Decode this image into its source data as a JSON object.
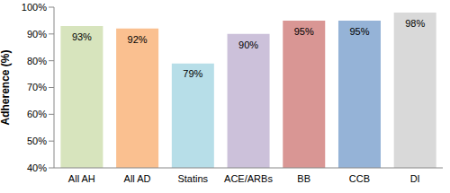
{
  "chart_data": {
    "type": "bar",
    "y_label": "Adherence (%)",
    "categories": [
      "All AH",
      "All AD",
      "Statins",
      "ACE/ARBs",
      "BB",
      "CCB",
      "DI"
    ],
    "values": [
      93,
      92,
      79,
      90,
      95,
      95,
      98
    ],
    "value_labels": [
      "93%",
      "92%",
      "79%",
      "90%",
      "95%",
      "95%",
      "98%"
    ],
    "colors": [
      "#d7e4bd",
      "#fac090",
      "#b7dee8",
      "#ccc1da",
      "#d99694",
      "#95b3d7",
      "#d9d9d9"
    ],
    "ylim": [
      40,
      100
    ],
    "yticks": [
      {
        "value": 40,
        "label": "40%"
      },
      {
        "value": 50,
        "label": "50%"
      },
      {
        "value": 60,
        "label": "60%"
      },
      {
        "value": 70,
        "label": "70%"
      },
      {
        "value": 80,
        "label": "80%"
      },
      {
        "value": 90,
        "label": "90%"
      },
      {
        "value": 100,
        "label": "100%"
      }
    ],
    "data_labels": true,
    "grid": false
  }
}
